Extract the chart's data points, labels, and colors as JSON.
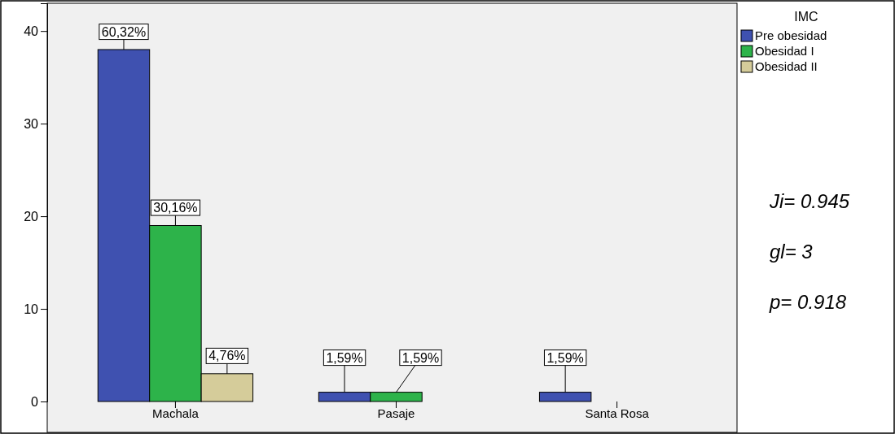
{
  "chart_data": {
    "type": "bar",
    "categories": [
      "Machala",
      "Pasaje",
      "Santa Rosa"
    ],
    "legend_title": "IMC",
    "legend": "top right",
    "series": [
      {
        "name": "Pre obesidad",
        "color": "#3f51b0",
        "values": [
          38,
          1,
          1
        ]
      },
      {
        "name": "Obesidad I",
        "color": "#2db34a",
        "values": [
          19,
          1,
          null
        ]
      },
      {
        "name": "Obesidad II",
        "color": "#d5cc9a",
        "values": [
          3,
          null,
          null
        ]
      }
    ],
    "ylim": [
      0,
      43
    ],
    "yticks": [
      0,
      10,
      20,
      30,
      40
    ],
    "grid": false,
    "annotations": [
      "Ji= 0.945",
      "gl= 3",
      "p= 0.918",
      {
        "text": "60,32%",
        "y": 38
      },
      {
        "text": "1,59%",
        "y": 1
      },
      {
        "text": "1,59%",
        "y": 1
      },
      {
        "text": "30,16%",
        "y": 19
      },
      {
        "text": "1,59%",
        "y": 1
      },
      {
        "text": "4,76%",
        "y": 3
      }
    ]
  }
}
